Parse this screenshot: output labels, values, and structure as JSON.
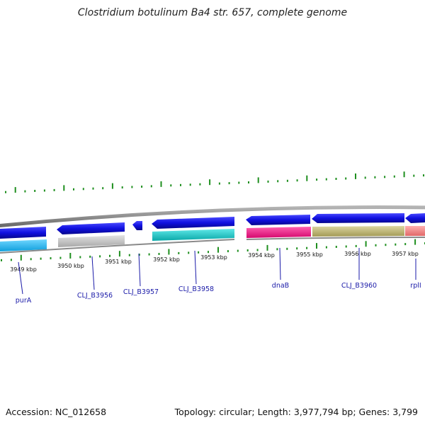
{
  "title": "Clostridium botulinum Ba4 str. 657, complete genome",
  "footer": {
    "accession": "Accession: NC_012658",
    "summary": "Topology: circular; Length: 3,977,794 bp; Genes: 3,799"
  },
  "kbp_ticks": [
    "3949 kbp",
    "3950 kbp",
    "3951 kbp",
    "3952 kbp",
    "3953 kbp",
    "3954 kbp",
    "3955 kbp",
    "3956 kbp",
    "3957 kbp"
  ],
  "gene_labels": [
    "purA",
    "CLJ_B3956",
    "CLJ_B3957",
    "CLJ_B3958",
    "dnaB",
    "CLJ_B3960",
    "rplI"
  ],
  "colors": {
    "backbone": "#8c8c8c",
    "cds_forward": "#1010e0",
    "tick": "#1f8f1f",
    "gene_label": "#1a1aa8",
    "feature_palette": [
      "#22b3f0",
      "#c8c8c8",
      "#19cfcf",
      "#f0168a",
      "#c4bc78",
      "#f08a8a"
    ]
  }
}
